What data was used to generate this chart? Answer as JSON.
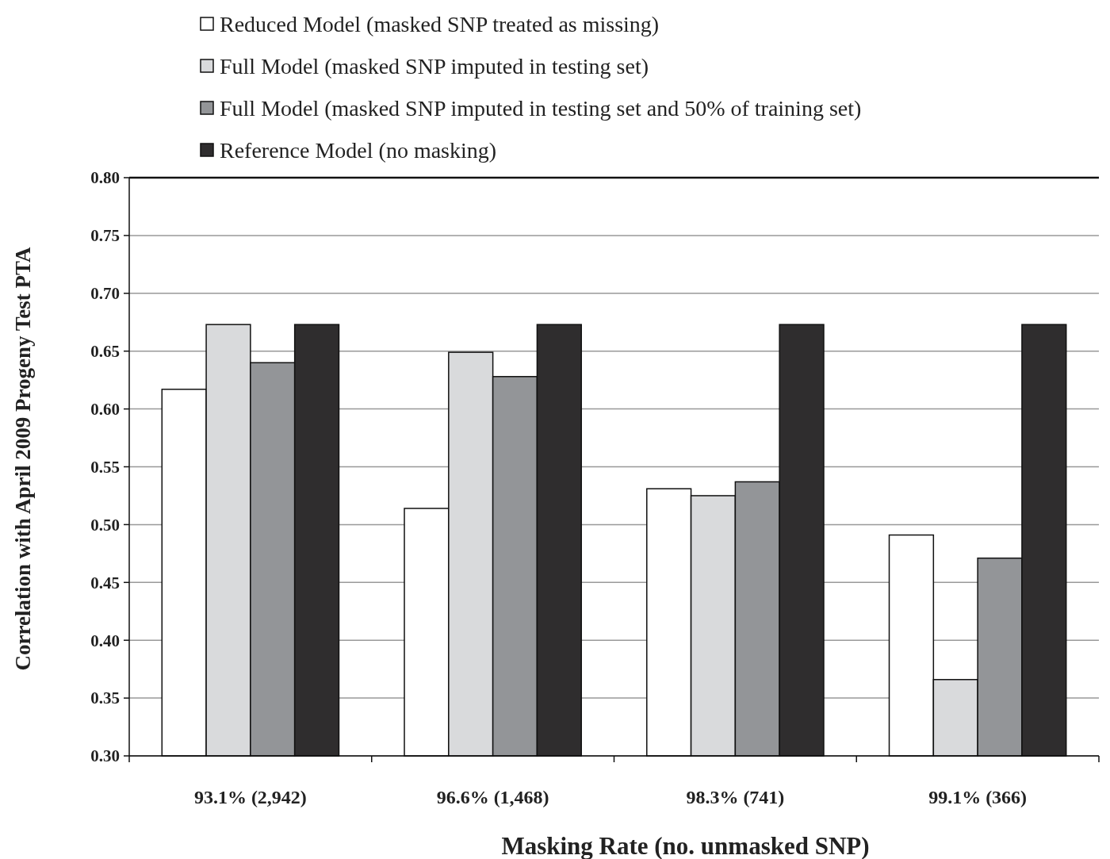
{
  "chart_data": {
    "type": "bar",
    "xlabel": "Masking Rate (no. unmasked SNP)",
    "ylabel": "Correlation with April 2009 Progeny Test PTA",
    "categories": [
      "93.1% (2,942)",
      "96.6% (1,468)",
      "98.3% (741)",
      "99.1% (366)"
    ],
    "series": [
      {
        "name": "Reduced Model (masked SNP treated as missing)",
        "color": "#ffffff",
        "values": [
          0.617,
          0.514,
          0.531,
          0.491
        ]
      },
      {
        "name": "Full Model (masked SNP imputed in testing set)",
        "color": "#d9dadc",
        "values": [
          0.673,
          0.649,
          0.525,
          0.366
        ]
      },
      {
        "name": "Full Model (masked SNP imputed in testing set and 50% of training set)",
        "color": "#939598",
        "values": [
          0.64,
          0.628,
          0.537,
          0.471
        ]
      },
      {
        "name": "Reference Model (no masking)",
        "color": "#2f2d2e",
        "values": [
          0.673,
          0.673,
          0.673,
          0.673
        ]
      }
    ],
    "ylim": [
      0.3,
      0.8
    ],
    "yticks": [
      {
        "value": 0.3,
        "label": "0.30"
      },
      {
        "value": 0.35,
        "label": "0.35"
      },
      {
        "value": 0.4,
        "label": "0.40"
      },
      {
        "value": 0.45,
        "label": "0.45"
      },
      {
        "value": 0.5,
        "label": "0.50"
      },
      {
        "value": 0.55,
        "label": "0.55"
      },
      {
        "value": 0.6,
        "label": "0.60"
      },
      {
        "value": 0.65,
        "label": "0.65"
      },
      {
        "value": 0.7,
        "label": "0.70"
      },
      {
        "value": 0.75,
        "label": "0.75"
      },
      {
        "value": 0.8,
        "label": "0.80"
      }
    ],
    "grid": "y",
    "legend": "top left"
  }
}
